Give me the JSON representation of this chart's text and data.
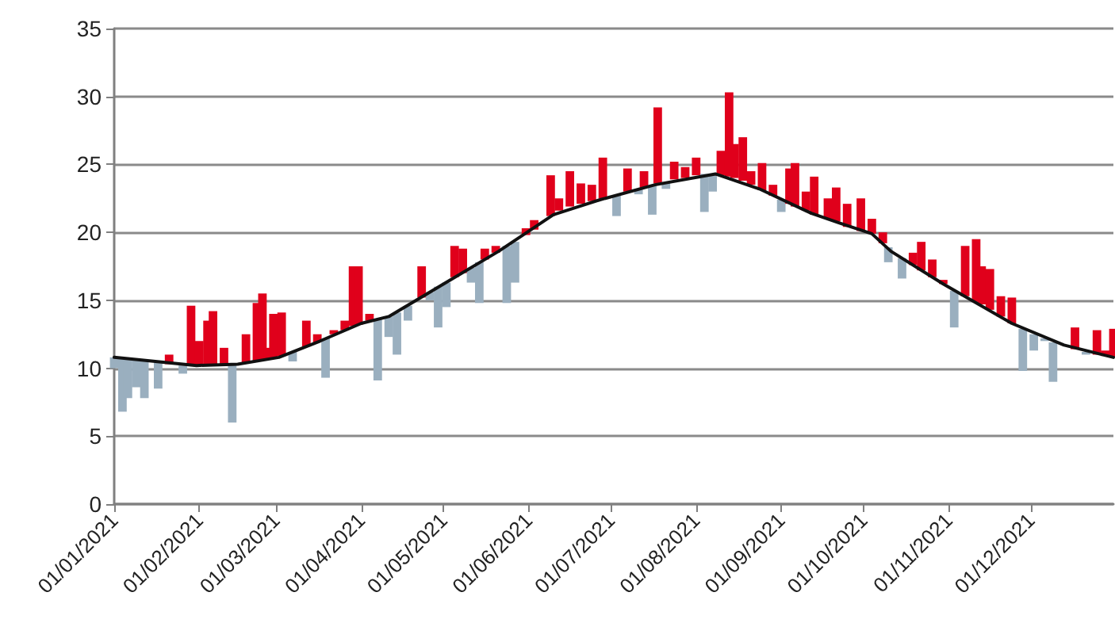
{
  "chart_data": {
    "type": "bar",
    "xlim": [
      "2021-01-01",
      "2021-12-31"
    ],
    "xticks": [
      {
        "value": "2021-01-01",
        "label": "01/01/2021"
      },
      {
        "value": "2021-02-01",
        "label": "01/02/2021"
      },
      {
        "value": "2021-03-01",
        "label": "01/03/2021"
      },
      {
        "value": "2021-04-01",
        "label": "01/04/2021"
      },
      {
        "value": "2021-05-01",
        "label": "01/05/2021"
      },
      {
        "value": "2021-06-01",
        "label": "01/06/2021"
      },
      {
        "value": "2021-07-01",
        "label": "01/07/2021"
      },
      {
        "value": "2021-08-01",
        "label": "01/08/2021"
      },
      {
        "value": "2021-09-01",
        "label": "01/09/2021"
      },
      {
        "value": "2021-10-01",
        "label": "01/10/2021"
      },
      {
        "value": "2021-11-01",
        "label": "01/11/2021"
      },
      {
        "value": "2021-12-01",
        "label": "01/12/2021"
      }
    ],
    "ylim": [
      0,
      35
    ],
    "yticks": [
      0,
      5,
      10,
      15,
      20,
      25,
      30,
      35
    ],
    "grid": "y",
    "series": [
      {
        "x": [
          "2021-01-01",
          "2021-01-04",
          "2021-01-06",
          "2021-01-09",
          "2021-01-12",
          "2021-01-17",
          "2021-01-21",
          "2021-01-26",
          "2021-01-29",
          "2021-02-01",
          "2021-02-04",
          "2021-02-06",
          "2021-02-10",
          "2021-02-13",
          "2021-02-18",
          "2021-02-22",
          "2021-02-24",
          "2021-02-26",
          "2021-02-28",
          "2021-03-03",
          "2021-03-07",
          "2021-03-12",
          "2021-03-16",
          "2021-03-19",
          "2021-03-22",
          "2021-03-26",
          "2021-03-29",
          "2021-03-31",
          "2021-04-04",
          "2021-04-07",
          "2021-04-11",
          "2021-04-14",
          "2021-04-18",
          "2021-04-23",
          "2021-04-26",
          "2021-04-29",
          "2021-05-02",
          "2021-05-05",
          "2021-05-08",
          "2021-05-11",
          "2021-05-14",
          "2021-05-16",
          "2021-05-20",
          "2021-05-24",
          "2021-05-27",
          "2021-05-31",
          "2021-06-03",
          "2021-06-09",
          "2021-06-12",
          "2021-06-16",
          "2021-06-20",
          "2021-06-24",
          "2021-06-28",
          "2021-07-03",
          "2021-07-07",
          "2021-07-11",
          "2021-07-13",
          "2021-07-16",
          "2021-07-18",
          "2021-07-21",
          "2021-07-24",
          "2021-07-28",
          "2021-08-01",
          "2021-08-04",
          "2021-08-07",
          "2021-08-10",
          "2021-08-13",
          "2021-08-15",
          "2021-08-18",
          "2021-08-21",
          "2021-08-25",
          "2021-08-29",
          "2021-09-01",
          "2021-09-04",
          "2021-09-06",
          "2021-09-10",
          "2021-09-13",
          "2021-09-18",
          "2021-09-21",
          "2021-09-25",
          "2021-09-30",
          "2021-10-04",
          "2021-10-08",
          "2021-10-10",
          "2021-10-15",
          "2021-10-19",
          "2021-10-22",
          "2021-10-26",
          "2021-10-30",
          "2021-11-03",
          "2021-11-07",
          "2021-11-11",
          "2021-11-13",
          "2021-11-16",
          "2021-11-20",
          "2021-11-24",
          "2021-11-28",
          "2021-12-02",
          "2021-12-06",
          "2021-12-09",
          "2021-12-17",
          "2021-12-21",
          "2021-12-25",
          "2021-12-28",
          "2021-12-31"
        ],
        "base": [
          10.8,
          10.7,
          10.7,
          10.6,
          10.5,
          10.4,
          10.3,
          10.2,
          10.2,
          10.2,
          10.2,
          10.2,
          10.3,
          10.3,
          10.4,
          10.5,
          10.6,
          10.7,
          10.7,
          10.9,
          11.2,
          11.6,
          11.9,
          12.2,
          12.5,
          12.8,
          13.1,
          13.2,
          13.5,
          13.6,
          13.8,
          14.1,
          14.6,
          15.2,
          15.6,
          16.0,
          16.3,
          16.7,
          17.0,
          17.4,
          17.8,
          18.0,
          18.5,
          19.0,
          19.3,
          19.8,
          20.2,
          21.2,
          21.6,
          21.9,
          22.1,
          22.3,
          22.5,
          22.7,
          23.0,
          23.2,
          23.3,
          23.5,
          23.6,
          23.7,
          23.9,
          24.0,
          24.2,
          24.3,
          24.3,
          24.2,
          24.1,
          24.0,
          23.8,
          23.5,
          23.1,
          22.7,
          22.4,
          22.1,
          21.9,
          21.6,
          21.3,
          21.0,
          20.8,
          20.4,
          20.1,
          19.9,
          19.2,
          18.9,
          18.1,
          17.6,
          17.2,
          16.7,
          16.2,
          15.7,
          15.3,
          14.9,
          14.7,
          14.3,
          13.8,
          13.3,
          12.9,
          12.5,
          12.2,
          11.9,
          11.4,
          11.2,
          11.0,
          10.9,
          10.8
        ],
        "values": [
          -0.8,
          -3.9,
          -2.9,
          -2.0,
          -2.7,
          -1.9,
          0.7,
          -0.6,
          4.4,
          1.8,
          3.3,
          4.0,
          1.2,
          -4.3,
          2.1,
          4.3,
          4.9,
          0.8,
          3.3,
          3.2,
          -0.7,
          1.9,
          0.6,
          -2.9,
          0.3,
          0.7,
          4.4,
          4.3,
          0.5,
          -4.5,
          -1.5,
          -3.1,
          -1.1,
          2.3,
          -0.6,
          -3.0,
          -1.8,
          2.3,
          1.8,
          -1.1,
          -3.0,
          0.8,
          0.5,
          -4.2,
          -3.0,
          0.5,
          0.7,
          3.0,
          0.9,
          2.6,
          1.5,
          1.2,
          3.0,
          -1.5,
          1.7,
          -0.4,
          1.2,
          -2.2,
          5.6,
          -0.5,
          1.3,
          0.8,
          1.3,
          -2.8,
          -1.3,
          1.8,
          6.2,
          2.5,
          3.2,
          1.0,
          2.0,
          0.8,
          -0.9,
          2.6,
          3.2,
          1.4,
          2.8,
          1.5,
          2.5,
          1.7,
          2.4,
          1.1,
          0.8,
          -1.1,
          -1.5,
          0.9,
          2.1,
          1.3,
          0.3,
          -2.7,
          3.7,
          4.6,
          2.8,
          3.0,
          1.5,
          1.9,
          -3.1,
          -1.2,
          -0.2,
          -2.9,
          1.6,
          -0.2,
          1.8,
          0.4,
          2.1
        ],
        "colors": [
          "#9aafbf",
          "#9aafbf",
          "#9aafbf",
          "#9aafbf",
          "#9aafbf",
          "#9aafbf",
          "#e0001b",
          "#9aafbf",
          "#e0001b",
          "#e0001b",
          "#e0001b",
          "#e0001b",
          "#e0001b",
          "#9aafbf",
          "#e0001b",
          "#e0001b",
          "#e0001b",
          "#e0001b",
          "#e0001b",
          "#e0001b",
          "#9aafbf",
          "#e0001b",
          "#e0001b",
          "#9aafbf",
          "#e0001b",
          "#e0001b",
          "#e0001b",
          "#e0001b",
          "#e0001b",
          "#9aafbf",
          "#9aafbf",
          "#9aafbf",
          "#9aafbf",
          "#e0001b",
          "#9aafbf",
          "#9aafbf",
          "#9aafbf",
          "#e0001b",
          "#e0001b",
          "#9aafbf",
          "#9aafbf",
          "#e0001b",
          "#e0001b",
          "#9aafbf",
          "#9aafbf",
          "#e0001b",
          "#e0001b",
          "#e0001b",
          "#e0001b",
          "#e0001b",
          "#e0001b",
          "#e0001b",
          "#e0001b",
          "#9aafbf",
          "#e0001b",
          "#9aafbf",
          "#e0001b",
          "#9aafbf",
          "#e0001b",
          "#9aafbf",
          "#e0001b",
          "#e0001b",
          "#e0001b",
          "#9aafbf",
          "#9aafbf",
          "#e0001b",
          "#e0001b",
          "#e0001b",
          "#e0001b",
          "#e0001b",
          "#e0001b",
          "#e0001b",
          "#9aafbf",
          "#e0001b",
          "#e0001b",
          "#e0001b",
          "#e0001b",
          "#e0001b",
          "#e0001b",
          "#e0001b",
          "#e0001b",
          "#e0001b",
          "#e0001b",
          "#9aafbf",
          "#9aafbf",
          "#e0001b",
          "#e0001b",
          "#e0001b",
          "#e0001b",
          "#9aafbf",
          "#e0001b",
          "#e0001b",
          "#e0001b",
          "#e0001b",
          "#e0001b",
          "#e0001b",
          "#9aafbf",
          "#9aafbf",
          "#9aafbf",
          "#9aafbf",
          "#e0001b",
          "#9aafbf",
          "#e0001b",
          "#e0001b",
          "#e0001b"
        ]
      },
      {
        "type": "line",
        "color": "#111111",
        "x": [
          "2021-01-01",
          "2021-01-31",
          "2021-02-15",
          "2021-03-02",
          "2021-03-17",
          "2021-04-01",
          "2021-04-11",
          "2021-05-01",
          "2021-05-21",
          "2021-06-10",
          "2021-06-27",
          "2021-07-17",
          "2021-08-08",
          "2021-08-24",
          "2021-09-12",
          "2021-09-22",
          "2021-10-04",
          "2021-10-11",
          "2021-10-30",
          "2021-11-24",
          "2021-12-13",
          "2021-12-31"
        ],
        "values": [
          10.8,
          10.2,
          10.3,
          10.8,
          12.0,
          13.3,
          13.8,
          16.2,
          18.6,
          21.3,
          22.4,
          23.5,
          24.3,
          23.2,
          21.4,
          20.7,
          19.9,
          18.6,
          16.2,
          13.3,
          11.7,
          10.8
        ]
      }
    ]
  }
}
